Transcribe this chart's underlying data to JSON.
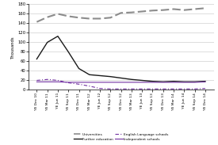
{
  "x_labels": [
    "YE Dec 10",
    "YE Mar 11",
    "YE Jun 11",
    "YE Sep 11",
    "YE Dec 11",
    "YE Mar 12",
    "YE Jun 12",
    "YE Sep 12",
    "YE Dec 12",
    "YE Mar 13",
    "YE Jun 13",
    "YE Sep 13",
    "YE Dec 13",
    "YE Mar 14",
    "YE Jun 14",
    "YE Sep 14",
    "YE Dec 14"
  ],
  "universities": [
    143,
    153,
    160,
    155,
    152,
    150,
    150,
    152,
    162,
    163,
    165,
    167,
    168,
    170,
    168,
    170,
    172
  ],
  "further_education": [
    65,
    100,
    113,
    80,
    45,
    32,
    30,
    28,
    25,
    22,
    20,
    18,
    17,
    18,
    17,
    17,
    18
  ],
  "english_language": [
    20,
    22,
    20,
    15,
    12,
    8,
    3,
    2,
    2,
    2,
    2,
    2,
    2,
    2,
    2,
    2,
    3
  ],
  "independent_schools": [
    17,
    17,
    17,
    16,
    16,
    16,
    16,
    16,
    16,
    16,
    16,
    16,
    16,
    16,
    16,
    16,
    17
  ],
  "universities_color": "#8c8c8c",
  "further_education_color": "#1a1a1a",
  "english_language_color": "#7030a0",
  "independent_schools_color": "#7030a0",
  "ylim": [
    0,
    180
  ],
  "yticks": [
    0,
    20,
    40,
    60,
    80,
    100,
    120,
    140,
    160,
    180
  ],
  "ylabel": "Thousands",
  "background_color": "#ffffff",
  "grid_color": "#d0d0d0"
}
